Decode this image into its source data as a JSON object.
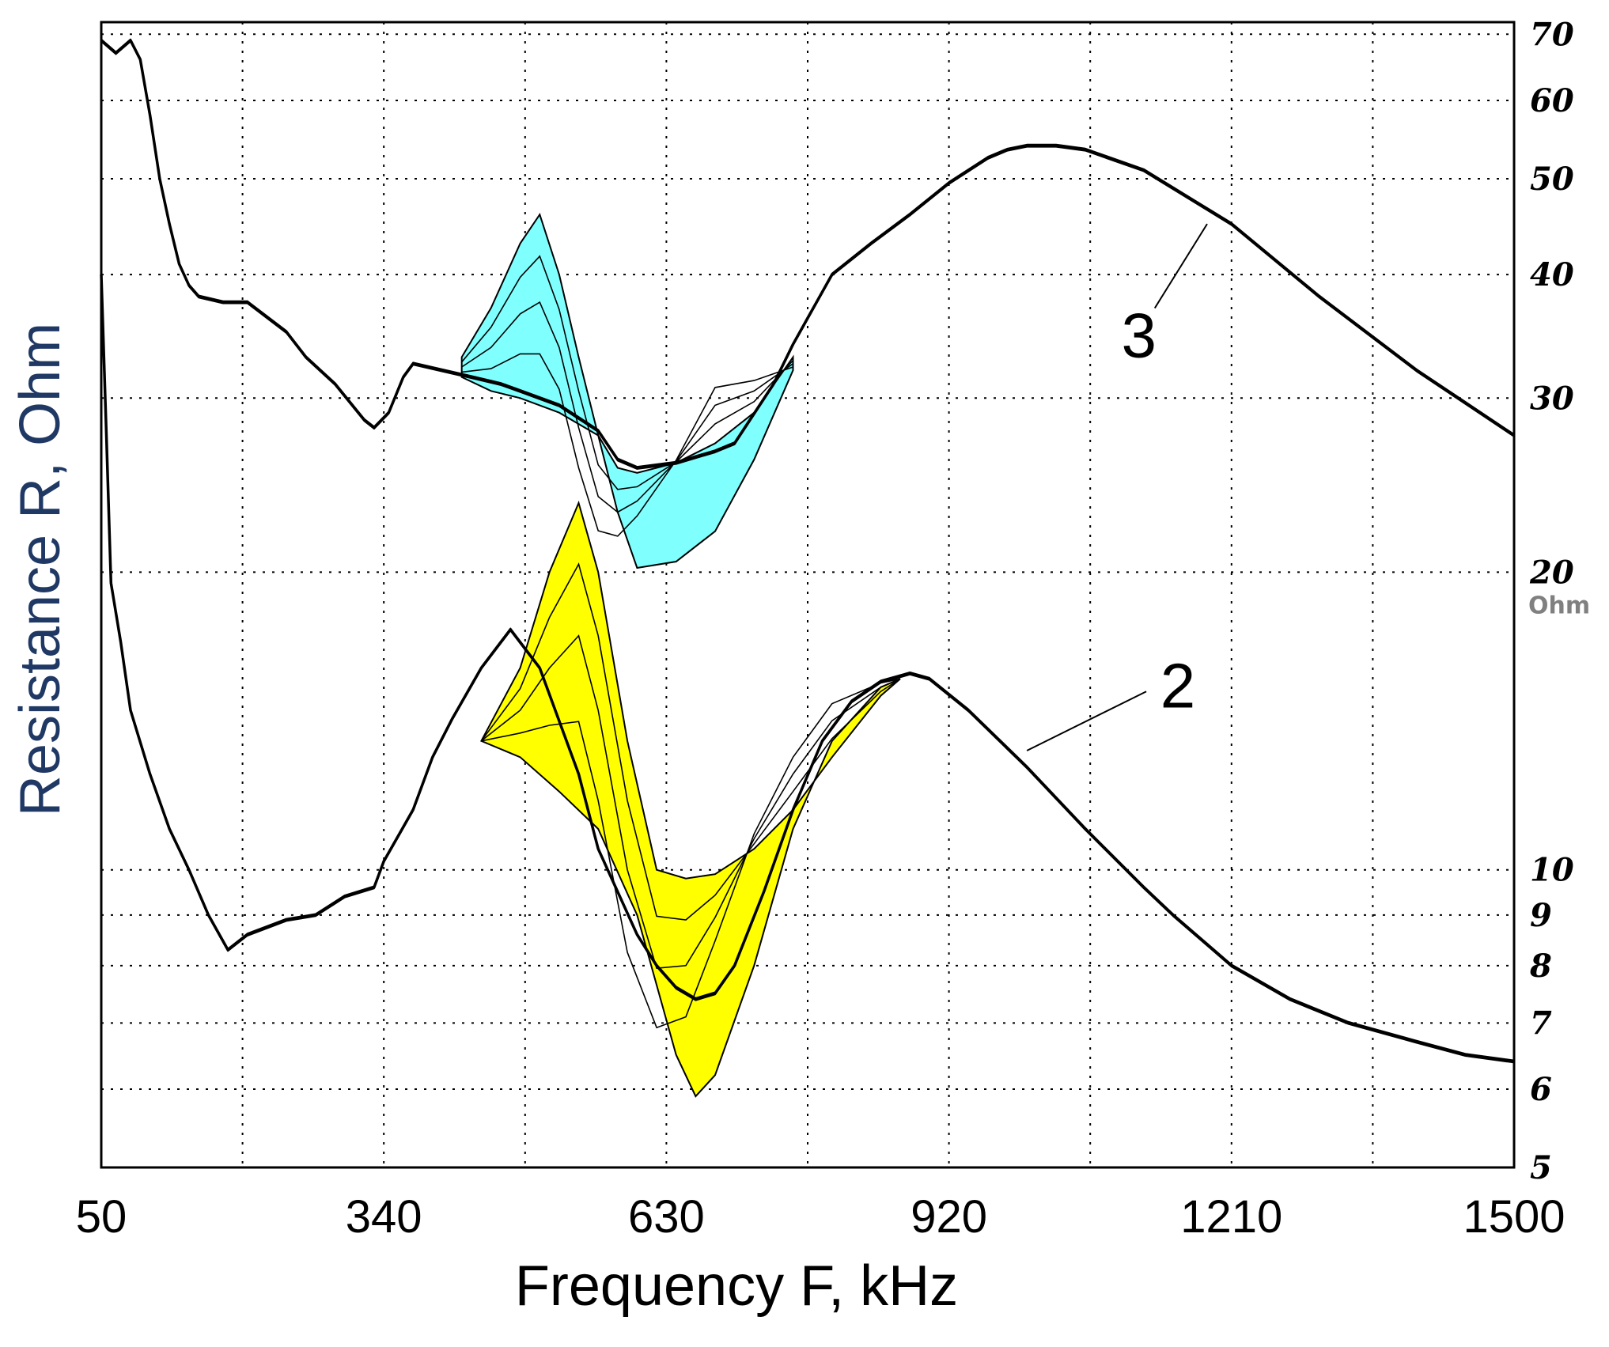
{
  "chart_data": {
    "type": "line",
    "xlabel": "Frequency F, kHz",
    "ylabel": "Resistance R, Ohm",
    "y_unit_label": "Ohm",
    "xlim": [
      50,
      1500
    ],
    "ylim": [
      5,
      72
    ],
    "y_scale": "log",
    "grid": true,
    "x_ticks": [
      50,
      340,
      630,
      920,
      1210,
      1500
    ],
    "y_ticks": [
      5,
      6,
      7,
      8,
      9,
      10,
      20,
      30,
      40,
      50,
      60,
      70
    ],
    "colors": {
      "axis": "#000000",
      "grid": "#000000",
      "band_3": "#80FFFF",
      "band_2": "#FFFF00",
      "ylabel": "#1F3864",
      "curve": "#000000"
    },
    "series": [
      {
        "name": "3",
        "role": "main",
        "x": [
          50,
          65,
          80,
          90,
          100,
          110,
          120,
          130,
          140,
          150,
          175,
          200,
          240,
          260,
          290,
          320,
          330,
          345,
          360,
          370,
          400,
          430,
          460,
          480,
          520,
          560,
          580,
          600,
          640,
          680,
          700,
          740,
          760,
          800,
          840,
          880,
          920,
          960,
          980,
          1000,
          1030,
          1060,
          1120,
          1210,
          1300,
          1400,
          1500
        ],
        "y": [
          69,
          67,
          69,
          66,
          58,
          50,
          45,
          41,
          39,
          38,
          37.5,
          37.5,
          35,
          33,
          31,
          28.5,
          28,
          29,
          31.5,
          32.5,
          32,
          31.5,
          31,
          30.5,
          29.5,
          27.8,
          26,
          25.5,
          25.8,
          26.5,
          27,
          31,
          34,
          40,
          43,
          46,
          49.5,
          52.5,
          53.5,
          54,
          54,
          53.5,
          51,
          45,
          38,
          32,
          27.5
        ]
      },
      {
        "name": "3",
        "role": "band-upper",
        "x": [
          420,
          450,
          480,
          500,
          520,
          540,
          560,
          580,
          600,
          640,
          680,
          720,
          760
        ],
        "y": [
          33,
          37,
          43,
          46,
          40,
          33,
          27.5,
          25.5,
          25.2,
          25.8,
          27,
          29,
          33
        ]
      },
      {
        "name": "3",
        "role": "band-lower",
        "x": [
          420,
          450,
          480,
          520,
          560,
          580,
          600,
          640,
          680,
          720,
          760
        ],
        "y": [
          31.5,
          30.5,
          30,
          29,
          27.5,
          23,
          20.2,
          20.5,
          22,
          26,
          32
        ]
      },
      {
        "name": "2",
        "role": "main",
        "x": [
          50,
          55,
          60,
          70,
          80,
          100,
          120,
          140,
          160,
          180,
          200,
          240,
          270,
          300,
          330,
          340,
          370,
          390,
          410,
          440,
          470,
          500,
          540,
          560,
          600,
          620,
          640,
          660,
          680,
          700,
          730,
          760,
          790,
          820,
          850,
          880,
          900,
          940,
          1000,
          1060,
          1120,
          1150,
          1210,
          1270,
          1330,
          1400,
          1450,
          1500
        ],
        "y": [
          40,
          28,
          19.5,
          17,
          14.5,
          12.5,
          11,
          10,
          9,
          8.3,
          8.6,
          8.9,
          9,
          9.4,
          9.6,
          10.2,
          11.5,
          13,
          14.2,
          16,
          17.5,
          16,
          12.5,
          10.5,
          8.6,
          8,
          7.6,
          7.4,
          7.5,
          8,
          9.5,
          11.5,
          13.5,
          14.8,
          15.5,
          15.8,
          15.6,
          14.5,
          12.7,
          11,
          9.6,
          9,
          8,
          7.4,
          7,
          6.7,
          6.5,
          6.4
        ]
      },
      {
        "name": "2",
        "role": "band-upper",
        "x": [
          440,
          480,
          510,
          540,
          560,
          590,
          620,
          650,
          680,
          720,
          760,
          800,
          850,
          870
        ],
        "y": [
          13.5,
          16,
          20,
          23.5,
          20,
          13.5,
          10,
          9.8,
          9.9,
          10.5,
          11.5,
          13,
          15,
          15.6
        ]
      },
      {
        "name": "2",
        "role": "band-lower",
        "x": [
          440,
          480,
          520,
          560,
          600,
          640,
          660,
          680,
          720,
          760,
          800,
          850,
          870
        ],
        "y": [
          13.5,
          13,
          12,
          11,
          9,
          6.5,
          5.9,
          6.2,
          8,
          11,
          13.5,
          15.3,
          15.6
        ]
      }
    ],
    "annotations": [
      {
        "text": "3",
        "x": 1115,
        "y": 33,
        "pointer_to": {
          "x": 1185,
          "y": 45
        }
      },
      {
        "text": "2",
        "x": 1155,
        "y": 14.6,
        "pointer_to": {
          "x": 1000,
          "y": 13.2
        }
      }
    ]
  }
}
